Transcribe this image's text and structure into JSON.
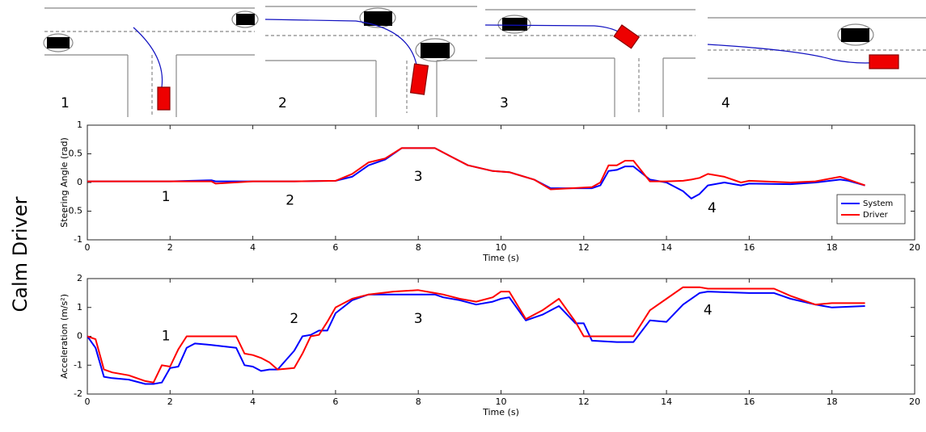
{
  "side_label": "Calm Driver",
  "scenes": [
    {
      "label": "1"
    },
    {
      "label": "2"
    },
    {
      "label": "3"
    },
    {
      "label": "4"
    }
  ],
  "chart_data": [
    {
      "type": "line",
      "ylabel": "Steering Angle (rad)",
      "xlabel": "Time (s)",
      "xlim": [
        0,
        20
      ],
      "xticks": [
        0,
        2,
        4,
        6,
        8,
        10,
        12,
        14,
        16,
        18,
        20
      ],
      "ylim": [
        -1,
        1
      ],
      "yticks": [
        -1,
        -0.5,
        0,
        0.5,
        1
      ],
      "annotations": [
        "1",
        "2",
        "3",
        "4"
      ],
      "legend": "lower right",
      "x": [
        0,
        1,
        2,
        3,
        3.1,
        4,
        5,
        6,
        6.4,
        6.8,
        7.2,
        7.6,
        8.4,
        8.8,
        9.2,
        9.8,
        10.2,
        10.8,
        11.2,
        12.2,
        12.4,
        12.6,
        12.8,
        13,
        13.2,
        13.6,
        14,
        14.4,
        14.6,
        14.8,
        15,
        15.4,
        15.8,
        16,
        17,
        17.6,
        18.2,
        18.4,
        18.8
      ],
      "series": [
        {
          "name": "System",
          "color": "#0000ff",
          "values": [
            0.02,
            0.02,
            0.02,
            0.04,
            0.02,
            0.02,
            0.02,
            0.03,
            0.1,
            0.3,
            0.4,
            0.6,
            0.6,
            0.45,
            0.3,
            0.2,
            0.18,
            0.05,
            -0.1,
            -0.1,
            -0.05,
            0.2,
            0.22,
            0.28,
            0.28,
            0.05,
            0,
            -0.15,
            -0.28,
            -0.2,
            -0.05,
            0,
            -0.05,
            -0.02,
            -0.03,
            0,
            0.05,
            0.03,
            -0.05
          ]
        },
        {
          "name": "Driver",
          "color": "#ff0000",
          "values": [
            0.02,
            0.02,
            0.02,
            0.02,
            -0.02,
            0.02,
            0.02,
            0.03,
            0.15,
            0.35,
            0.42,
            0.6,
            0.6,
            0.45,
            0.3,
            0.2,
            0.18,
            0.05,
            -0.12,
            -0.08,
            0,
            0.3,
            0.3,
            0.38,
            0.38,
            0.02,
            0.02,
            0.03,
            0.05,
            0.08,
            0.15,
            0.1,
            0,
            0.03,
            0,
            0.02,
            0.1,
            0.05,
            -0.05
          ]
        }
      ]
    },
    {
      "type": "line",
      "ylabel": "Acceleration (m/s²)",
      "xlabel": "Time (s)",
      "xlim": [
        0,
        20
      ],
      "xticks": [
        0,
        2,
        4,
        6,
        8,
        10,
        12,
        14,
        16,
        18,
        20
      ],
      "ylim": [
        -2,
        2
      ],
      "yticks": [
        -2,
        -1,
        0,
        1,
        2
      ],
      "annotations": [
        "1",
        "2",
        "3",
        "4"
      ],
      "x": [
        0,
        0.2,
        0.4,
        0.6,
        1,
        1.4,
        1.6,
        1.8,
        2,
        2.2,
        2.4,
        2.6,
        3,
        3.6,
        3.8,
        4,
        4.2,
        4.4,
        4.6,
        5,
        5.2,
        5.4,
        5.6,
        5.8,
        6,
        6.4,
        6.8,
        7.4,
        8,
        8.4,
        8.6,
        9,
        9.4,
        9.8,
        10,
        10.2,
        10.6,
        11,
        11.4,
        11.8,
        12,
        12.2,
        12.8,
        13.2,
        13.6,
        14,
        14.4,
        14.8,
        15,
        16,
        16.6,
        17,
        17.6,
        18,
        18.8
      ],
      "series": [
        {
          "name": "System",
          "color": "#0000ff",
          "values": [
            0,
            -0.4,
            -1.4,
            -1.45,
            -1.5,
            -1.65,
            -1.65,
            -1.6,
            -1.1,
            -1.05,
            -0.4,
            -0.25,
            -0.3,
            -0.4,
            -1.0,
            -1.05,
            -1.2,
            -1.15,
            -1.15,
            -0.5,
            0,
            0.05,
            0.2,
            0.2,
            0.8,
            1.25,
            1.45,
            1.45,
            1.45,
            1.45,
            1.35,
            1.25,
            1.1,
            1.2,
            1.3,
            1.35,
            0.55,
            0.75,
            1.05,
            0.45,
            0.45,
            -0.15,
            -0.2,
            -0.2,
            0.55,
            0.5,
            1.1,
            1.5,
            1.55,
            1.5,
            1.5,
            1.3,
            1.1,
            1.0,
            1.05
          ]
        },
        {
          "name": "Driver",
          "color": "#ff0000",
          "values": [
            0,
            -0.1,
            -1.15,
            -1.25,
            -1.35,
            -1.55,
            -1.6,
            -1.0,
            -1.05,
            -0.45,
            0,
            0,
            0,
            0,
            -0.6,
            -0.65,
            -0.75,
            -0.9,
            -1.15,
            -1.1,
            -0.6,
            0,
            0.05,
            0.5,
            1.0,
            1.3,
            1.45,
            1.55,
            1.6,
            1.5,
            1.45,
            1.3,
            1.2,
            1.35,
            1.55,
            1.55,
            0.6,
            0.9,
            1.3,
            0.5,
            0,
            0,
            0,
            0,
            0.9,
            1.3,
            1.7,
            1.7,
            1.65,
            1.65,
            1.65,
            1.4,
            1.1,
            1.15,
            1.15
          ]
        }
      ]
    }
  ]
}
